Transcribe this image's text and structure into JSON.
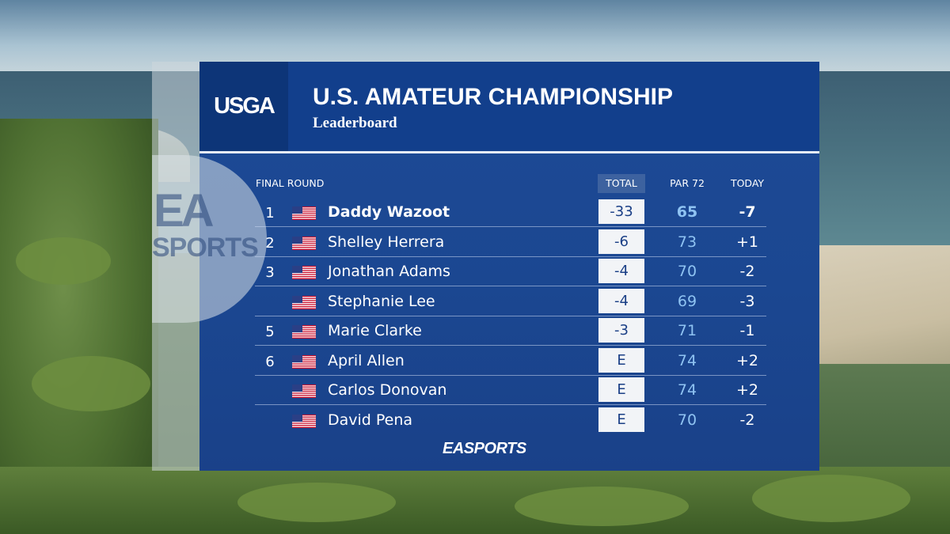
{
  "header": {
    "logo": "USGA",
    "title": "U.S. AMATEUR CHAMPIONSHIP",
    "subtitle": "Leaderboard"
  },
  "watermark": {
    "top": "EA",
    "bottom": "SPORTS"
  },
  "columns": {
    "round": "FINAL ROUND",
    "total": "TOTAL",
    "par": "PAR 72",
    "today": "TODAY"
  },
  "rows": [
    {
      "pos": "1",
      "flag": "us-flag-icon",
      "player": "Daddy Wazoot",
      "total": "-33",
      "par": "65",
      "today": "-7",
      "leader": true
    },
    {
      "pos": "2",
      "flag": "us-flag-icon",
      "player": "Shelley Herrera",
      "total": "-6",
      "par": "73",
      "today": "+1"
    },
    {
      "pos": "3",
      "flag": "us-flag-icon",
      "player": "Jonathan Adams",
      "total": "-4",
      "par": "70",
      "today": "-2"
    },
    {
      "pos": "",
      "flag": "us-flag-icon",
      "player": "Stephanie Lee",
      "total": "-4",
      "par": "69",
      "today": "-3"
    },
    {
      "pos": "5",
      "flag": "us-flag-icon",
      "player": "Marie Clarke",
      "total": "-3",
      "par": "71",
      "today": "-1"
    },
    {
      "pos": "6",
      "flag": "us-flag-icon",
      "player": "April Allen",
      "total": "E",
      "par": "74",
      "today": "+2"
    },
    {
      "pos": "",
      "flag": "us-flag-icon",
      "player": "Carlos Donovan",
      "total": "E",
      "par": "74",
      "today": "+2"
    },
    {
      "pos": "",
      "flag": "us-flag-icon",
      "player": "David Pena",
      "total": "E",
      "par": "70",
      "today": "-2"
    }
  ],
  "footer": {
    "logo": "EASPORTS"
  },
  "colors": {
    "panel": "#1d4a96",
    "header": "#123f8c",
    "par_text": "#8fc3f2",
    "total_box": "#f2f4f7"
  }
}
